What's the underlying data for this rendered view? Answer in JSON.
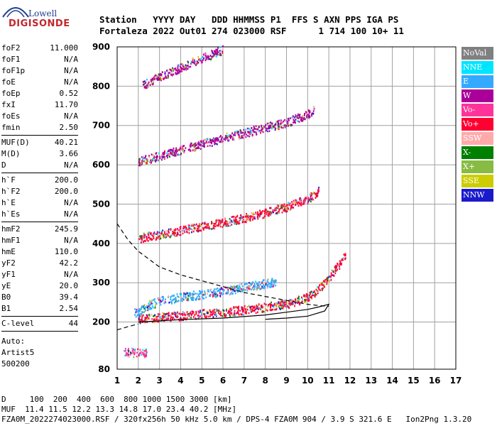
{
  "logo": {
    "line1": "Lowell",
    "line2": "DIGISONDE"
  },
  "header": {
    "labels": "Station   YYYY DAY   DDD HHMMSS P1  FFS S AXN PPS IGA PS",
    "values": "Fortaleza 2022 Out01 274 023000 RSF      1 714 100 10+ 11"
  },
  "params_groups": [
    [
      [
        "foF2",
        "11.000"
      ],
      [
        "foF1",
        "N/A"
      ],
      [
        "foF1p",
        "N/A"
      ],
      [
        "foE",
        "N/A"
      ],
      [
        "foEp",
        "0.52"
      ],
      [
        "fxI",
        "11.70"
      ],
      [
        "foEs",
        "N/A"
      ],
      [
        "fmin",
        "2.50"
      ]
    ],
    [
      [
        "MUF(D)",
        "40.21"
      ],
      [
        "M(D)",
        "3.66"
      ],
      [
        "D",
        "N/A"
      ]
    ],
    [
      [
        "h`F",
        "200.0"
      ],
      [
        "h`F2",
        "200.0"
      ],
      [
        "h`E",
        "N/A"
      ],
      [
        "h`Es",
        "N/A"
      ]
    ],
    [
      [
        "hmF2",
        "245.9"
      ],
      [
        "hmF1",
        "N/A"
      ],
      [
        "hmE",
        "110.0"
      ],
      [
        "yF2",
        "42.2"
      ],
      [
        "yF1",
        "N/A"
      ],
      [
        "yE",
        "20.0"
      ],
      [
        "B0",
        "39.4"
      ],
      [
        "B1",
        "2.54"
      ]
    ],
    [
      [
        "C-level",
        "44"
      ]
    ]
  ],
  "auto": {
    "line1": "Auto:",
    "line2": "Artist5",
    "line3": "500200"
  },
  "legend": [
    {
      "name": "NoVal",
      "color": "#808080"
    },
    {
      "name": "NNE",
      "color": "#00e5ff"
    },
    {
      "name": "E",
      "color": "#33aaff"
    },
    {
      "name": "W",
      "color": "#aa0099"
    },
    {
      "name": "Vo-",
      "color": "#ff3399"
    },
    {
      "name": "Vo+",
      "color": "#ff0033"
    },
    {
      "name": "SSW",
      "color": "#ffaaaa"
    },
    {
      "name": "X-",
      "color": "#008000"
    },
    {
      "name": "X+",
      "color": "#88bb44"
    },
    {
      "name": "SSE",
      "color": "#cccc00"
    },
    {
      "name": "NNW",
      "color": "#1a1acc"
    }
  ],
  "footer": {
    "line1": "D     100  200  400  600  800 1000 1500 3000 [km]",
    "line2": "MUF  11.4 11.5 12.2 13.3 14.8 17.0 23.4 40.2 [MHz]",
    "line3": "FZA0M_2022274023000.RSF / 320fx256h 50 kHz 5.0 km / DPS-4 FZA0M 904 / 3.9 S 321.6 E   Ion2Png 1.3.20"
  },
  "chart_data": {
    "type": "scatter",
    "title": "",
    "xlabel": "",
    "ylabel": "",
    "xlim": [
      1,
      17
    ],
    "ylim": [
      80,
      900
    ],
    "x_ticks": [
      1,
      2,
      3,
      4,
      5,
      6,
      7,
      8,
      9,
      10,
      11,
      12,
      13,
      14,
      15,
      16,
      17
    ],
    "y_ticks": [
      80,
      200,
      300,
      400,
      500,
      600,
      700,
      800,
      900
    ],
    "grid": true,
    "echo_traces": [
      {
        "name": "O-trace 1st hop",
        "color": "#ff0033",
        "x": [
          2.0,
          3.0,
          4.0,
          5.0,
          6.0,
          7.0,
          8.0,
          9.0,
          10.0,
          10.5,
          11.0,
          11.5,
          11.8
        ],
        "y": [
          205,
          210,
          213,
          218,
          222,
          228,
          235,
          243,
          260,
          280,
          310,
          345,
          370
        ]
      },
      {
        "name": "oblique low",
        "color": "#33aaff",
        "x": [
          1.8,
          2.5,
          3.0,
          4.0,
          5.0,
          6.0,
          7.0,
          8.0,
          8.5
        ],
        "y": [
          220,
          240,
          250,
          260,
          268,
          275,
          285,
          295,
          300
        ]
      },
      {
        "name": "2nd hop",
        "color": "#ff0033",
        "x": [
          2.0,
          3.0,
          4.0,
          5.0,
          6.0,
          7.0,
          8.0,
          9.0,
          10.0,
          10.5
        ],
        "y": [
          410,
          420,
          430,
          440,
          450,
          462,
          475,
          490,
          510,
          530
        ]
      },
      {
        "name": "3rd hop",
        "color": "#aa0099",
        "x": [
          2.0,
          3.0,
          4.0,
          5.0,
          6.0,
          7.0,
          8.0,
          9.0,
          10.0,
          10.3
        ],
        "y": [
          605,
          620,
          635,
          650,
          665,
          678,
          692,
          705,
          725,
          740
        ]
      },
      {
        "name": "4th hop",
        "color": "#aa0099",
        "x": [
          2.2,
          3.0,
          4.0,
          5.0,
          6.0
        ],
        "y": [
          800,
          820,
          845,
          868,
          890
        ]
      },
      {
        "name": "Es low",
        "color": "#ff3399",
        "x": [
          1.3,
          1.6,
          2.0,
          2.4
        ],
        "y": [
          120,
          120,
          118,
          119
        ]
      }
    ],
    "profile_dashed": {
      "x": [
        1.0,
        1.5,
        2.0,
        3.0,
        4.0,
        5.0,
        6.0,
        7.0,
        8.0,
        9.0,
        10.0,
        10.5,
        11.0
      ],
      "y": [
        450,
        410,
        380,
        340,
        320,
        305,
        290,
        275,
        265,
        255,
        245,
        242,
        240
      ]
    },
    "profile_solid": {
      "x": [
        2.0,
        4.0,
        6.0,
        8.0,
        9.0,
        10.0,
        10.5,
        11.0,
        10.8,
        10.0,
        9.0,
        8.0
      ],
      "y": [
        200,
        206,
        210,
        218,
        225,
        232,
        238,
        245,
        228,
        215,
        210,
        207
      ]
    },
    "profile_lower_dashed": {
      "x": [
        1.0,
        1.5,
        2.0
      ],
      "y": [
        180,
        188,
        195
      ]
    }
  }
}
